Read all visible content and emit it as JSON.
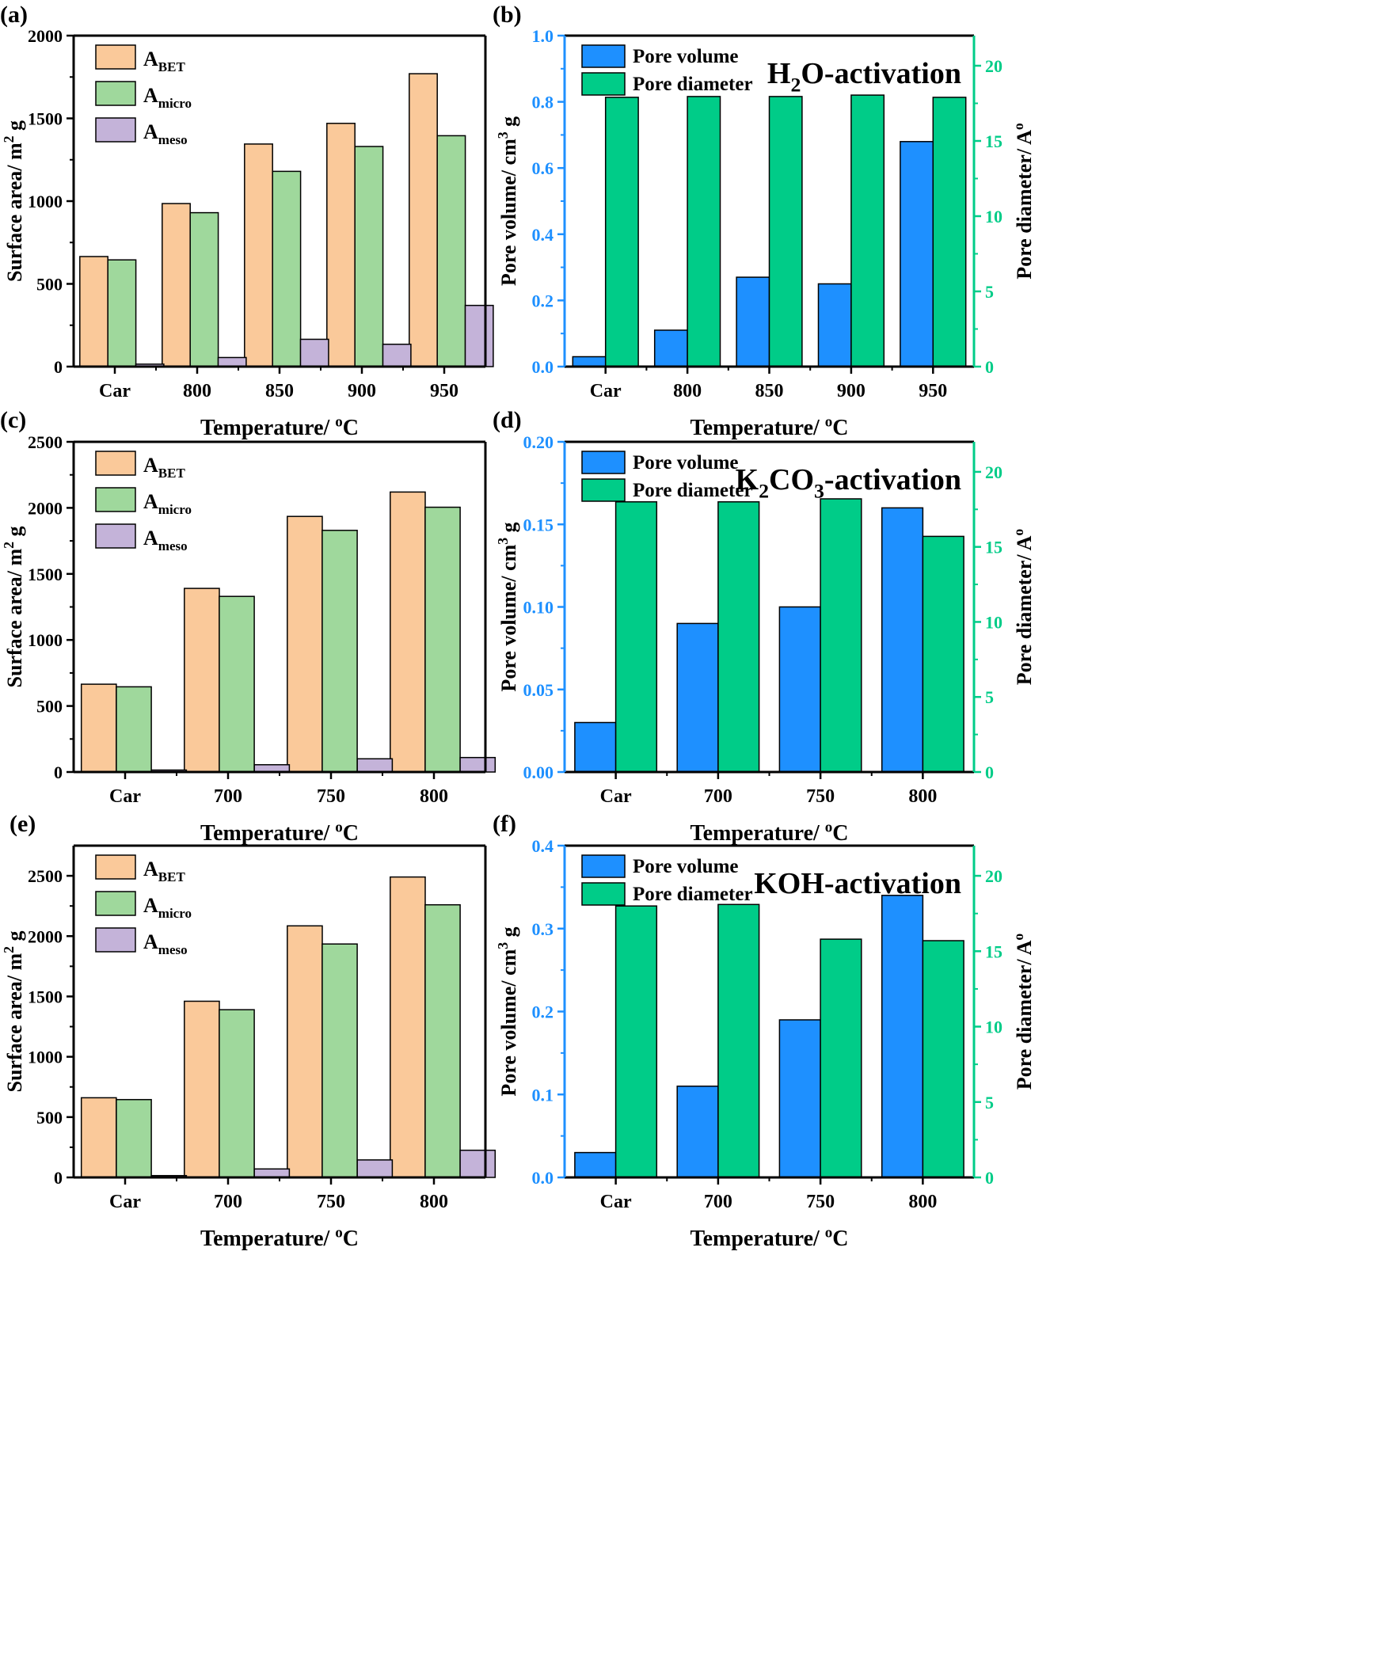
{
  "figure": {
    "colors": {
      "abet": "#FAC99A",
      "amicro": "#9FD89C",
      "ameso": "#C4B3D9",
      "pore_volume": "#1E90FF",
      "pore_diameter": "#00CC88",
      "blue_axis": "#1E90FF",
      "green_axis": "#00CC88"
    }
  },
  "chart_data": [
    {
      "panel_label": "(a)",
      "type": "bar",
      "categories": [
        "Car",
        "800",
        "850",
        "900",
        "950"
      ],
      "series": [
        {
          "name": "ABET",
          "sub": "BET",
          "values": [
            665,
            985,
            1345,
            1470,
            1770
          ]
        },
        {
          "name": "Amicro",
          "sub": "micro",
          "values": [
            645,
            930,
            1180,
            1330,
            1395
          ]
        },
        {
          "name": "Ameso",
          "sub": "meso",
          "values": [
            15,
            55,
            165,
            135,
            370
          ]
        }
      ],
      "xlabel": "Temperature/ ºC",
      "ylabel": "Surface area/ m² g",
      "ylim": [
        0,
        2000
      ],
      "yticks": [
        "0",
        "500",
        "1000",
        "1500",
        "2000"
      ],
      "legend": "top-left"
    },
    {
      "panel_label": "(b)",
      "type": "bar",
      "title": "H₂O-activation",
      "categories": [
        "Car",
        "800",
        "850",
        "900",
        "950"
      ],
      "series": [
        {
          "name": "Pore volume",
          "axis": "left",
          "values": [
            0.03,
            0.11,
            0.27,
            0.25,
            0.68
          ]
        },
        {
          "name": "Pore diameter",
          "axis": "right",
          "values": [
            17.9,
            17.95,
            17.95,
            18.05,
            17.9
          ]
        }
      ],
      "xlabel": "Temperature/ ºC",
      "ylabel": "Pore volume/ cm³ g",
      "ylabel_right": "Pore diameter/ Aº",
      "ylim": [
        0,
        1.0
      ],
      "ylim_right": [
        0,
        22
      ],
      "yticks": [
        "0.0",
        "0.2",
        "0.4",
        "0.6",
        "0.8",
        "1.0"
      ],
      "yticks_right": [
        "0",
        "5",
        "10",
        "15",
        "20"
      ],
      "legend": "top-left"
    },
    {
      "panel_label": "(c)",
      "type": "bar",
      "categories": [
        "Car",
        "700",
        "750",
        "800"
      ],
      "series": [
        {
          "name": "ABET",
          "sub": "BET",
          "values": [
            665,
            1390,
            1935,
            2120
          ]
        },
        {
          "name": "Amicro",
          "sub": "micro",
          "values": [
            645,
            1330,
            1830,
            2005
          ]
        },
        {
          "name": "Ameso",
          "sub": "meso",
          "values": [
            15,
            55,
            100,
            110
          ]
        }
      ],
      "xlabel": "Temperature/ ºC",
      "ylabel": "Surface area/ m² g",
      "ylim": [
        0,
        2500
      ],
      "yticks": [
        "0",
        "500",
        "1000",
        "1500",
        "2000",
        "2500"
      ],
      "legend": "top-left"
    },
    {
      "panel_label": "(d)",
      "type": "bar",
      "title": "K₂CO₃-activation",
      "categories": [
        "Car",
        "700",
        "750",
        "800"
      ],
      "series": [
        {
          "name": "Pore volume",
          "axis": "left",
          "values": [
            0.03,
            0.09,
            0.1,
            0.16
          ]
        },
        {
          "name": "Pore diameter",
          "axis": "right",
          "values": [
            18.0,
            18.0,
            18.2,
            15.7
          ]
        }
      ],
      "xlabel": "Temperature/ ºC",
      "ylabel": "Pore volume/ cm³ g",
      "ylabel_right": "Pore diameter/ Aº",
      "ylim": [
        0,
        0.2
      ],
      "ylim_right": [
        0,
        22
      ],
      "yticks": [
        "0.00",
        "0.05",
        "0.10",
        "0.15",
        "0.20"
      ],
      "yticks_right": [
        "0",
        "5",
        "10",
        "15",
        "20"
      ],
      "legend": "top-left"
    },
    {
      "panel_label": "(e)",
      "type": "bar",
      "categories": [
        "Car",
        "700",
        "750",
        "800"
      ],
      "series": [
        {
          "name": "ABET",
          "sub": "BET",
          "values": [
            660,
            1460,
            2085,
            2490
          ]
        },
        {
          "name": "Amicro",
          "sub": "micro",
          "values": [
            645,
            1390,
            1935,
            2260
          ]
        },
        {
          "name": "Ameso",
          "sub": "meso",
          "values": [
            15,
            70,
            145,
            225
          ]
        }
      ],
      "xlabel": "Temperature/ ºC",
      "ylabel": "Surface area/ m² g",
      "ylim": [
        0,
        2750
      ],
      "yticks": [
        "0",
        "500",
        "1000",
        "1500",
        "2000",
        "2500"
      ],
      "legend": "top-left"
    },
    {
      "panel_label": "(f)",
      "type": "bar",
      "title": "KOH-activation",
      "categories": [
        "Car",
        "700",
        "750",
        "800"
      ],
      "series": [
        {
          "name": "Pore volume",
          "axis": "left",
          "values": [
            0.03,
            0.11,
            0.19,
            0.34
          ]
        },
        {
          "name": "Pore diameter",
          "axis": "right",
          "values": [
            18.0,
            18.1,
            15.8,
            15.7
          ]
        }
      ],
      "xlabel": "Temperature/ ºC",
      "ylabel": "Pore volume/ cm³ g",
      "ylabel_right": "Pore diameter/ Aº",
      "ylim": [
        0,
        0.4
      ],
      "ylim_right": [
        0,
        22
      ],
      "yticks": [
        "0.0",
        "0.1",
        "0.2",
        "0.3",
        "0.4"
      ],
      "yticks_right": [
        "0",
        "5",
        "10",
        "15",
        "20"
      ],
      "legend": "top-left"
    }
  ]
}
